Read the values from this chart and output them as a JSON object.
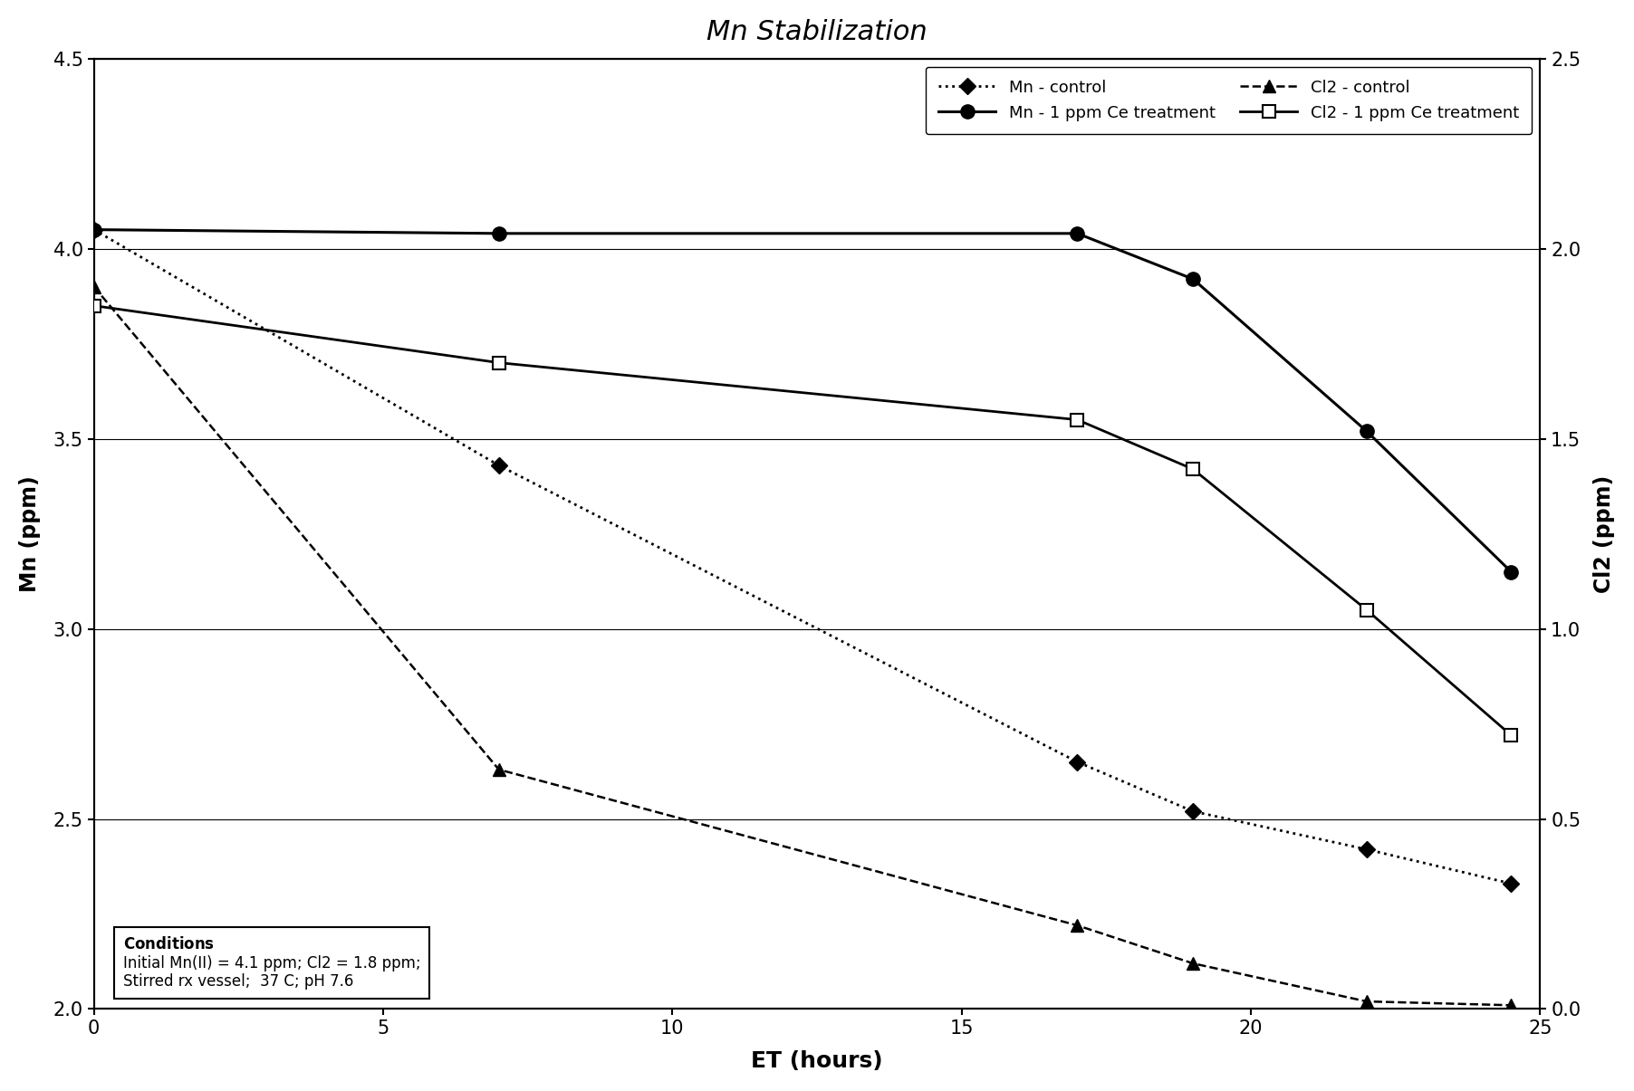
{
  "title": "Mn Stabilization",
  "xlabel": "ET (hours)",
  "ylabel_left": "Mn (ppm)",
  "ylabel_right": "Cl2 (ppm)",
  "xlim": [
    0,
    25
  ],
  "ylim_left": [
    2.0,
    4.5
  ],
  "ylim_right": [
    0.0,
    2.5
  ],
  "xticks": [
    0,
    5,
    10,
    15,
    20,
    25
  ],
  "yticks_left": [
    2.0,
    2.5,
    3.0,
    3.5,
    4.0,
    4.5
  ],
  "yticks_right": [
    0.0,
    0.5,
    1.0,
    1.5,
    2.0,
    2.5
  ],
  "mn_control_x": [
    0,
    7,
    17,
    19,
    22,
    24.5
  ],
  "mn_control_y": [
    4.05,
    3.43,
    2.65,
    2.52,
    2.42,
    2.33
  ],
  "cl2_control_x_raw": [
    0,
    7,
    17,
    19,
    22,
    24.5
  ],
  "cl2_control_y_raw": [
    1.9,
    0.63,
    0.22,
    0.12,
    0.02,
    0.01
  ],
  "mn_ce_x": [
    0,
    7,
    17,
    19,
    22,
    24.5
  ],
  "mn_ce_y": [
    4.05,
    4.04,
    4.04,
    3.92,
    3.52,
    3.15
  ],
  "cl2_ce_x_raw": [
    0,
    7,
    17,
    19,
    22,
    24.5
  ],
  "cl2_ce_y_raw": [
    1.85,
    1.7,
    1.55,
    1.42,
    1.05,
    0.72
  ],
  "background_color": "#ffffff"
}
